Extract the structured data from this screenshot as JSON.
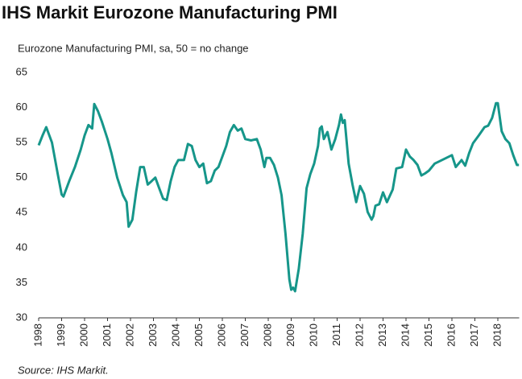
{
  "chart_data": {
    "type": "line",
    "title": "IHS Markit Eurozone Manufacturing PMI",
    "subtitle": "Eurozone Manufacturing PMI, sa, 50 = no change",
    "source": "Source: IHS Markit.",
    "color": "#16968a",
    "x": [
      1998.0,
      1998.17,
      1998.33,
      1998.58,
      1998.83,
      1999.0,
      1999.08,
      1999.33,
      1999.58,
      1999.83,
      2000.0,
      2000.17,
      2000.33,
      2000.42,
      2000.58,
      2000.75,
      2001.0,
      2001.17,
      2001.42,
      2001.67,
      2001.83,
      2001.92,
      2002.08,
      2002.25,
      2002.42,
      2002.58,
      2002.75,
      2002.92,
      2003.08,
      2003.25,
      2003.42,
      2003.58,
      2003.75,
      2003.92,
      2004.08,
      2004.33,
      2004.5,
      2004.67,
      2004.83,
      2005.0,
      2005.17,
      2005.33,
      2005.5,
      2005.67,
      2005.83,
      2006.0,
      2006.17,
      2006.33,
      2006.5,
      2006.67,
      2006.83,
      2007.0,
      2007.25,
      2007.5,
      2007.67,
      2007.83,
      2007.92,
      2008.08,
      2008.25,
      2008.42,
      2008.58,
      2008.75,
      2008.92,
      2009.0,
      2009.08,
      2009.17,
      2009.33,
      2009.5,
      2009.67,
      2009.83,
      2010.0,
      2010.17,
      2010.25,
      2010.33,
      2010.42,
      2010.58,
      2010.75,
      2010.92,
      2011.08,
      2011.17,
      2011.25,
      2011.33,
      2011.5,
      2011.67,
      2011.83,
      2012.0,
      2012.17,
      2012.33,
      2012.5,
      2012.58,
      2012.67,
      2012.83,
      2013.0,
      2013.17,
      2013.42,
      2013.58,
      2013.83,
      2014.0,
      2014.17,
      2014.33,
      2014.5,
      2014.67,
      2014.83,
      2015.0,
      2015.25,
      2015.5,
      2015.75,
      2016.0,
      2016.17,
      2016.42,
      2016.58,
      2016.75,
      2016.92,
      2017.17,
      2017.42,
      2017.58,
      2017.75,
      2017.92,
      2018.0,
      2018.17,
      2018.33,
      2018.5,
      2018.67,
      2018.83,
      2018.92
    ],
    "values": [
      54.6,
      56,
      57.2,
      55,
      50.5,
      47.6,
      47.3,
      49.5,
      51.5,
      54,
      56,
      57.5,
      57,
      60.5,
      59.5,
      58,
      55.5,
      53.5,
      50,
      47.5,
      46.5,
      43,
      44,
      48,
      51.5,
      51.5,
      49,
      49.5,
      50,
      48.5,
      47,
      46.8,
      49.5,
      51.5,
      52.5,
      52.5,
      54.8,
      54.5,
      52.5,
      51.5,
      52,
      49.2,
      49.5,
      51,
      51.5,
      53,
      54.5,
      56.5,
      57.5,
      56.7,
      57,
      55.5,
      55.3,
      55.5,
      54,
      51.5,
      52.8,
      52.8,
      51.8,
      50,
      47.5,
      42,
      35.5,
      34,
      34.3,
      33.8,
      37,
      42,
      48.5,
      50.5,
      52,
      54.5,
      57,
      57.3,
      55.5,
      56.5,
      54,
      55.5,
      57.5,
      59,
      57.8,
      58.2,
      52,
      49,
      46.5,
      48.8,
      47.7,
      45.1,
      44,
      44.5,
      46,
      46.2,
      47.9,
      46.5,
      48.3,
      51.3,
      51.5,
      54,
      53,
      52.5,
      51.8,
      50.3,
      50.6,
      51,
      52,
      52.4,
      52.8,
      53.2,
      51.5,
      52.5,
      51.7,
      53.5,
      54.9,
      56,
      57.2,
      57.4,
      58.5,
      60.6,
      60.6,
      56.6,
      55.5,
      54.9,
      53.2,
      51.8,
      51.8
    ],
    "xlim": [
      1998,
      2019
    ],
    "xticks": [
      1998,
      1999,
      2000,
      2001,
      2002,
      2003,
      2004,
      2005,
      2006,
      2007,
      2008,
      2009,
      2010,
      2011,
      2012,
      2013,
      2014,
      2015,
      2016,
      2017,
      2018
    ],
    "ylim": [
      30,
      65
    ],
    "yticks": [
      30,
      35,
      40,
      45,
      50,
      55,
      60,
      65
    ]
  }
}
